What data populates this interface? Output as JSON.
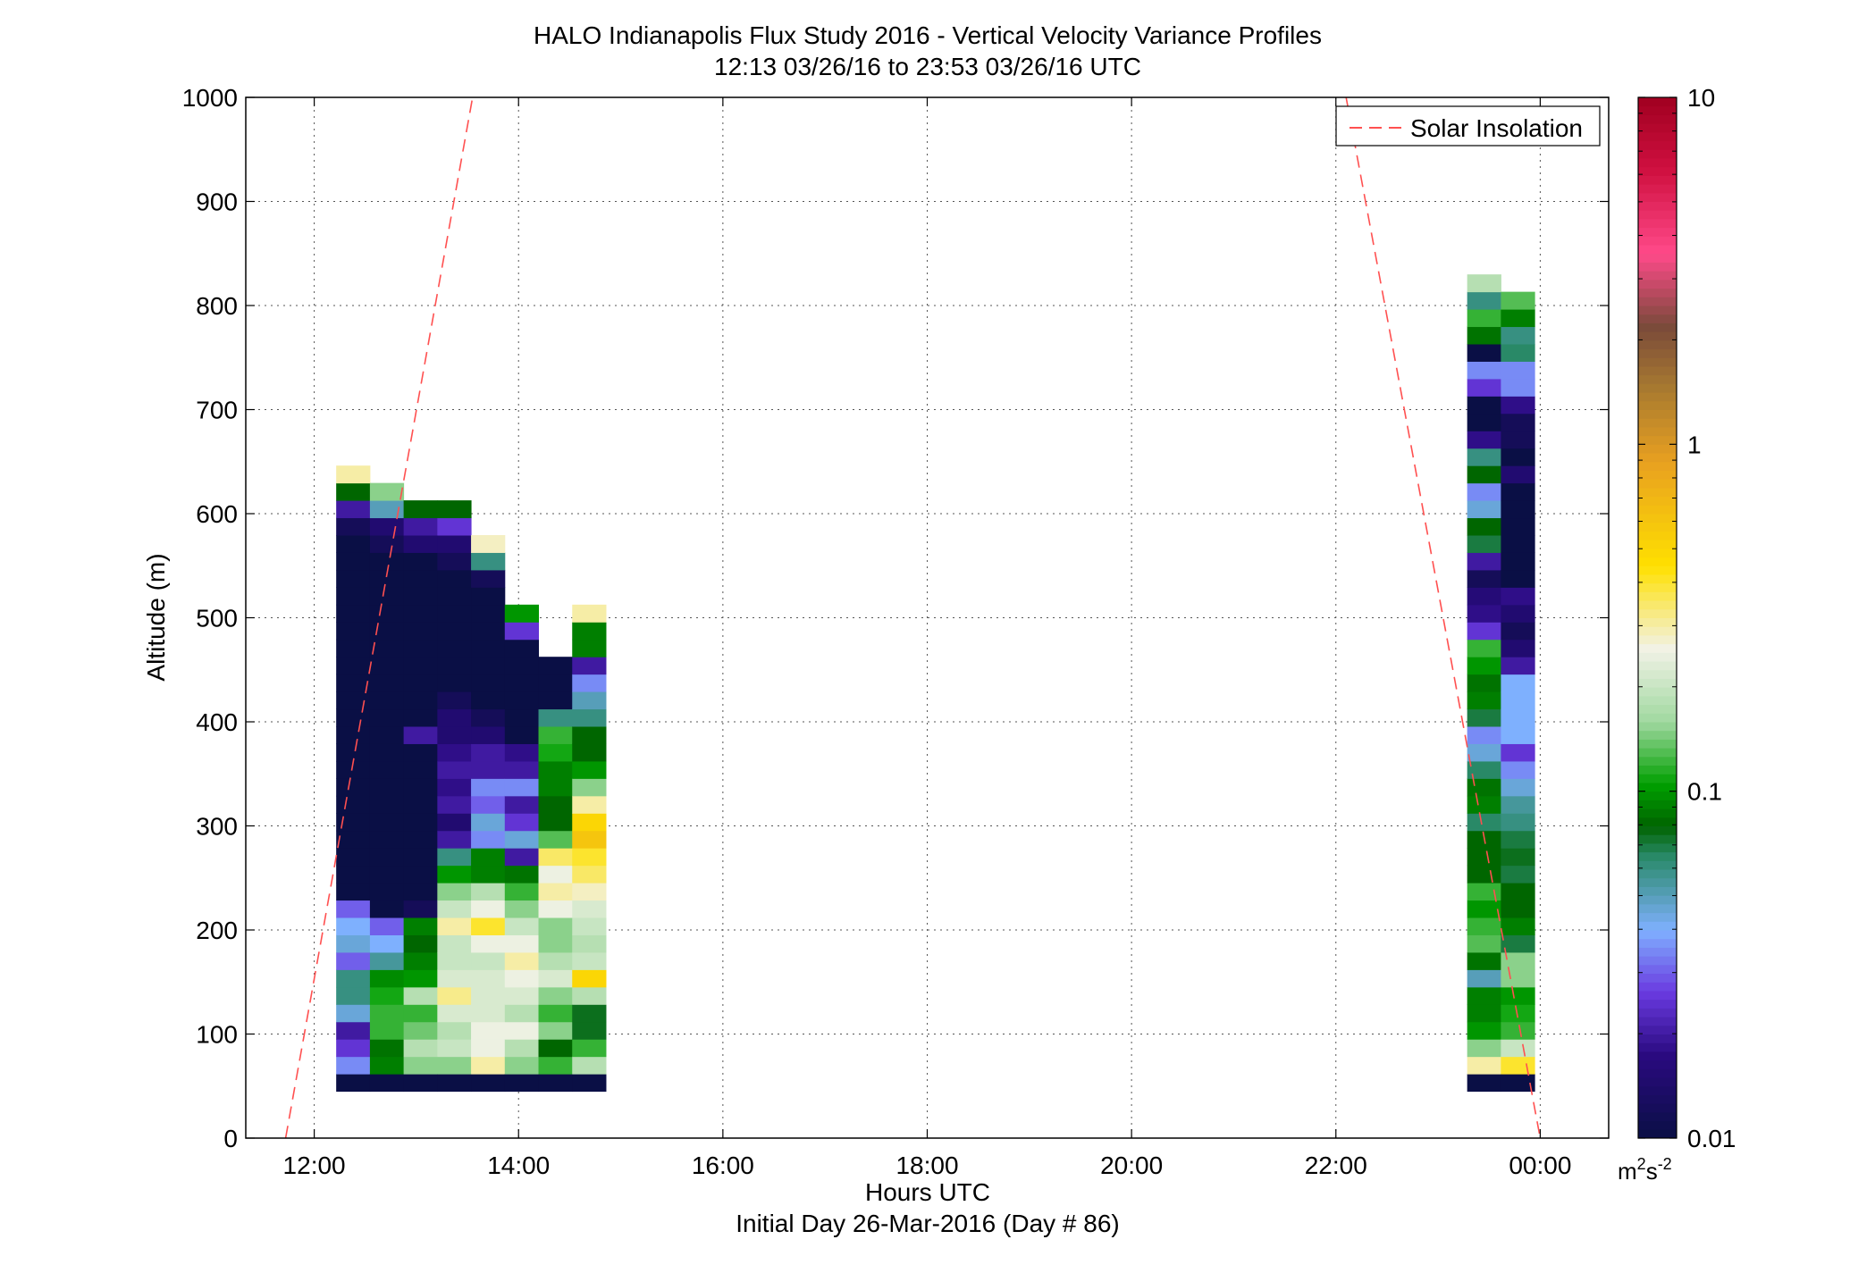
{
  "chart_data": {
    "type": "heatmap",
    "title": "HALO Indianapolis Flux Study 2016 - Vertical Velocity Variance Profiles",
    "subtitle": "12:13 03/26/16 to 23:53 03/26/16  UTC",
    "xlabel": "Hours UTC",
    "xlabel2": "Initial Day 26-Mar-2016 (Day # 86)",
    "ylabel": "Altitude (m)",
    "xlim": [
      11.33,
      24.67
    ],
    "ylim": [
      0,
      1000
    ],
    "x_ticks": [
      12,
      14,
      16,
      18,
      20,
      22,
      24
    ],
    "x_tick_labels": [
      "12:00",
      "14:00",
      "16:00",
      "18:00",
      "20:00",
      "22:00",
      "00:00"
    ],
    "y_ticks": [
      0,
      100,
      200,
      300,
      400,
      500,
      600,
      700,
      800,
      900,
      1000
    ],
    "y_tick_labels": [
      "0",
      "100",
      "200",
      "300",
      "400",
      "500",
      "600",
      "700",
      "800",
      "900",
      "1000"
    ],
    "grid": true,
    "legend": {
      "position": "top-right",
      "entries": [
        "Solar Insolation"
      ]
    },
    "colorbar": {
      "scale": "log",
      "range": [
        0.01,
        10
      ],
      "tick_labels": [
        "0.01",
        "0.1",
        "1",
        "10"
      ],
      "units_main": "m",
      "units_sup1": "2",
      "units_mid": "s",
      "units_sup2": "-2"
    },
    "colormap_stops": [
      [
        "#0a0f45",
        0.0
      ],
      [
        "#2a0a80",
        0.08
      ],
      [
        "#6a3ae0",
        0.14
      ],
      [
        "#7fb0ff",
        0.2
      ],
      [
        "#2a8a6a",
        0.27
      ],
      [
        "#006400",
        0.3
      ],
      [
        "#00a000",
        0.34
      ],
      [
        "#a0d8a0",
        0.4
      ],
      [
        "#f2f2e6",
        0.47
      ],
      [
        "#ffe000",
        0.55
      ],
      [
        "#e8a020",
        0.65
      ],
      [
        "#a87a30",
        0.72
      ],
      [
        "#7a4a3a",
        0.78
      ],
      [
        "#ff4a8a",
        0.85
      ],
      [
        "#d01040",
        0.93
      ],
      [
        "#a00020",
        1.0
      ]
    ],
    "bin_height_m": 16.7,
    "bin_width_h": 0.33,
    "profiles": [
      {
        "time": 12.38,
        "bottom": 45,
        "values": [
          0.01,
          0.035,
          0.025,
          0.02,
          0.045,
          0.06,
          0.06,
          0.03,
          0.045,
          0.04,
          0.03,
          0.01,
          0.01,
          0.01,
          0.01,
          0.01,
          0.01,
          0.01,
          0.01,
          0.01,
          0.01,
          0.01,
          0.01,
          0.01,
          0.01,
          0.01,
          0.01,
          0.01,
          0.01,
          0.01,
          0.01,
          0.01,
          0.012,
          0.02,
          0.08,
          0.3
        ]
      },
      {
        "time": 12.71,
        "bottom": 45,
        "values": [
          0.01,
          0.09,
          0.085,
          0.12,
          0.12,
          0.11,
          0.095,
          0.055,
          0.04,
          0.03,
          0.01,
          0.01,
          0.01,
          0.01,
          0.01,
          0.01,
          0.01,
          0.01,
          0.01,
          0.01,
          0.01,
          0.01,
          0.01,
          0.01,
          0.01,
          0.01,
          0.01,
          0.01,
          0.01,
          0.01,
          0.01,
          0.012,
          0.015,
          0.05,
          0.15
        ]
      },
      {
        "time": 13.04,
        "bottom": 45,
        "values": [
          0.01,
          0.15,
          0.18,
          0.14,
          0.12,
          0.18,
          0.1,
          0.09,
          0.08,
          0.09,
          0.012,
          0.01,
          0.01,
          0.01,
          0.01,
          0.01,
          0.01,
          0.01,
          0.01,
          0.01,
          0.02,
          0.01,
          0.01,
          0.01,
          0.01,
          0.01,
          0.01,
          0.01,
          0.01,
          0.01,
          0.01,
          0.015,
          0.02,
          0.08
        ]
      },
      {
        "time": 13.37,
        "bottom": 45,
        "values": [
          0.01,
          0.15,
          0.2,
          0.18,
          0.22,
          0.32,
          0.22,
          0.2,
          0.2,
          0.3,
          0.2,
          0.15,
          0.1,
          0.06,
          0.02,
          0.015,
          0.02,
          0.018,
          0.02,
          0.018,
          0.015,
          0.015,
          0.012,
          0.01,
          0.01,
          0.01,
          0.01,
          0.01,
          0.01,
          0.01,
          0.012,
          0.015,
          0.025,
          0.08
        ]
      },
      {
        "time": 13.7,
        "bottom": 45,
        "values": [
          0.01,
          0.3,
          0.25,
          0.25,
          0.22,
          0.22,
          0.22,
          0.2,
          0.25,
          0.4,
          0.25,
          0.18,
          0.09,
          0.09,
          0.035,
          0.045,
          0.03,
          0.035,
          0.02,
          0.02,
          0.015,
          0.012,
          0.01,
          0.01,
          0.01,
          0.01,
          0.01,
          0.01,
          0.01,
          0.012,
          0.06,
          0.28
        ]
      },
      {
        "time": 14.03,
        "bottom": 45,
        "values": [
          0.01,
          0.15,
          0.18,
          0.25,
          0.18,
          0.22,
          0.25,
          0.3,
          0.25,
          0.2,
          0.15,
          0.12,
          0.085,
          0.02,
          0.045,
          0.025,
          0.02,
          0.035,
          0.02,
          0.018,
          0.01,
          0.01,
          0.01,
          0.01,
          0.01,
          0.01,
          0.025,
          0.1
        ]
      },
      {
        "time": 14.36,
        "bottom": 45,
        "values": [
          0.01,
          0.12,
          0.08,
          0.15,
          0.12,
          0.15,
          0.22,
          0.18,
          0.15,
          0.15,
          0.25,
          0.3,
          0.25,
          0.35,
          0.13,
          0.08,
          0.08,
          0.09,
          0.09,
          0.11,
          0.12,
          0.06,
          0.01,
          0.01,
          0.01
        ]
      },
      {
        "time": 14.69,
        "bottom": 45,
        "values": [
          0.01,
          0.18,
          0.12,
          0.075,
          0.075,
          0.18,
          0.5,
          0.2,
          0.18,
          0.2,
          0.22,
          0.28,
          0.35,
          0.4,
          0.6,
          0.5,
          0.3,
          0.15,
          0.1,
          0.08,
          0.08,
          0.06,
          0.05,
          0.035,
          0.02,
          0.09,
          0.09,
          0.3
        ]
      },
      {
        "time": 23.45,
        "bottom": 45,
        "values": [
          0.01,
          0.3,
          0.15,
          0.1,
          0.09,
          0.09,
          0.05,
          0.085,
          0.13,
          0.12,
          0.1,
          0.12,
          0.08,
          0.08,
          0.08,
          0.065,
          0.09,
          0.085,
          0.065,
          0.045,
          0.035,
          0.07,
          0.09,
          0.085,
          0.1,
          0.12,
          0.025,
          0.018,
          0.016,
          0.012,
          0.02,
          0.07,
          0.08,
          0.045,
          0.035,
          0.08,
          0.06,
          0.018,
          0.01,
          0.01,
          0.025,
          0.035,
          0.01,
          0.085,
          0.12,
          0.06,
          0.18
        ]
      },
      {
        "time": 23.78,
        "bottom": 45,
        "values": [
          0.01,
          0.4,
          0.2,
          0.12,
          0.11,
          0.1,
          0.15,
          0.15,
          0.07,
          0.09,
          0.08,
          0.08,
          0.07,
          0.075,
          0.07,
          0.06,
          0.055,
          0.045,
          0.035,
          0.025,
          0.04,
          0.04,
          0.04,
          0.04,
          0.02,
          0.015,
          0.012,
          0.015,
          0.018,
          0.01,
          0.01,
          0.01,
          0.01,
          0.01,
          0.01,
          0.015,
          0.01,
          0.012,
          0.012,
          0.018,
          0.035,
          0.035,
          0.065,
          0.06,
          0.09,
          0.13
        ]
      }
    ],
    "series": [
      {
        "name": "Solar Insolation",
        "style": "dashed",
        "color": "#ff5050",
        "segments": [
          {
            "x": [
              11.72,
              13.55
            ],
            "y": [
              0,
              1000
            ]
          },
          {
            "x": [
              22.1,
              24.0
            ],
            "y": [
              1000,
              0
            ]
          }
        ]
      }
    ]
  }
}
